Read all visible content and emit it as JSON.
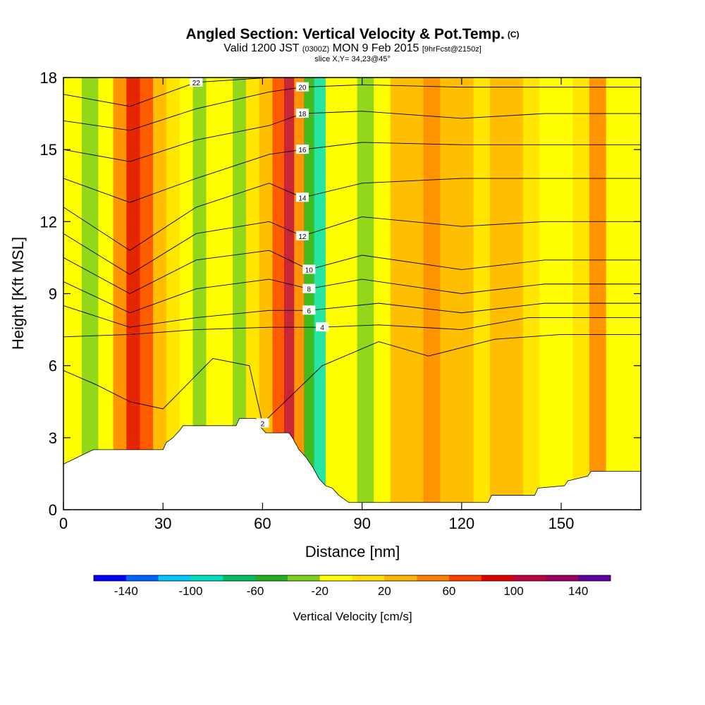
{
  "chart_data": {
    "type": "heatmap",
    "title": "Angled Section: Vertical Velocity & Pot.Temp.",
    "title_unit": "(C)",
    "subtitle_main": "Valid 1200 JST",
    "subtitle_utc": "(0300Z)",
    "subtitle_date": "MON 9 Feb 2015",
    "subtitle_fcst": "[9hrFcst@2150z]",
    "slice_label": "slice X,Y= 34,23@45°",
    "xlabel": "Distance [nm]",
    "ylabel": "Height [Kft MSL]",
    "xlim": [
      0,
      174
    ],
    "ylim": [
      0,
      18
    ],
    "x_ticks": [
      0,
      30,
      60,
      90,
      120,
      150
    ],
    "y_ticks": [
      0,
      3,
      6,
      9,
      12,
      15,
      18
    ],
    "grid": false,
    "colorbar": {
      "label": "Vertical Velocity [cm/s]",
      "tick_labels": [
        "-140",
        "-100",
        "-60",
        "-20",
        "20",
        "60",
        "100",
        "140"
      ],
      "tick_values": [
        -140,
        -100,
        -60,
        -20,
        20,
        60,
        100,
        140
      ],
      "bounds": [
        -160,
        160
      ],
      "step": 20,
      "colors": [
        "#0000ff",
        "#0064ff",
        "#00c8ff",
        "#00e0c0",
        "#00c060",
        "#20b020",
        "#80d020",
        "#ffff00",
        "#ffe000",
        "#ffb400",
        "#ff8000",
        "#ff4000",
        "#e00000",
        "#c00040",
        "#a00060",
        "#6000a0"
      ]
    },
    "velocity_columns": [
      {
        "x": 3,
        "value": -20
      },
      {
        "x": 8,
        "value": -40
      },
      {
        "x": 13,
        "value": -20
      },
      {
        "x": 17,
        "value": 40
      },
      {
        "x": 21,
        "value": 80
      },
      {
        "x": 25,
        "value": 60
      },
      {
        "x": 29,
        "value": 20
      },
      {
        "x": 33,
        "value": 0
      },
      {
        "x": 37,
        "value": -20
      },
      {
        "x": 41,
        "value": -40
      },
      {
        "x": 45,
        "value": -20
      },
      {
        "x": 49,
        "value": -20
      },
      {
        "x": 53,
        "value": -40
      },
      {
        "x": 57,
        "value": 0
      },
      {
        "x": 61,
        "value": 20
      },
      {
        "x": 65,
        "value": 60
      },
      {
        "x": 68,
        "value": 100
      },
      {
        "x": 71,
        "value": 40
      },
      {
        "x": 74,
        "value": -60
      },
      {
        "x": 77,
        "value": -100
      },
      {
        "x": 81,
        "value": -20
      },
      {
        "x": 86,
        "value": -20
      },
      {
        "x": 91,
        "value": -40
      },
      {
        "x": 96,
        "value": -20
      },
      {
        "x": 101,
        "value": 20
      },
      {
        "x": 106,
        "value": 20
      },
      {
        "x": 111,
        "value": 40
      },
      {
        "x": 116,
        "value": 20
      },
      {
        "x": 121,
        "value": 20
      },
      {
        "x": 126,
        "value": 0
      },
      {
        "x": 131,
        "value": 20
      },
      {
        "x": 136,
        "value": 20
      },
      {
        "x": 141,
        "value": 0
      },
      {
        "x": 146,
        "value": -20
      },
      {
        "x": 151,
        "value": -20
      },
      {
        "x": 156,
        "value": 0
      },
      {
        "x": 161,
        "value": 40
      },
      {
        "x": 166,
        "value": -20
      },
      {
        "x": 171,
        "value": -20
      }
    ],
    "terrain": [
      {
        "x": 0,
        "h": 1.9
      },
      {
        "x": 3,
        "h": 2.1
      },
      {
        "x": 6,
        "h": 2.3
      },
      {
        "x": 9,
        "h": 2.5
      },
      {
        "x": 12,
        "h": 2.5
      },
      {
        "x": 30,
        "h": 2.5
      },
      {
        "x": 31,
        "h": 2.8
      },
      {
        "x": 33,
        "h": 3.0
      },
      {
        "x": 35,
        "h": 3.3
      },
      {
        "x": 36,
        "h": 3.5
      },
      {
        "x": 52,
        "h": 3.5
      },
      {
        "x": 53,
        "h": 3.8
      },
      {
        "x": 58,
        "h": 3.8
      },
      {
        "x": 59,
        "h": 3.5
      },
      {
        "x": 61,
        "h": 3.2
      },
      {
        "x": 68,
        "h": 3.2
      },
      {
        "x": 69,
        "h": 3.0
      },
      {
        "x": 71,
        "h": 2.5
      },
      {
        "x": 73,
        "h": 2.2
      },
      {
        "x": 75,
        "h": 1.8
      },
      {
        "x": 77,
        "h": 1.3
      },
      {
        "x": 79,
        "h": 1.0
      },
      {
        "x": 81,
        "h": 0.9
      },
      {
        "x": 83,
        "h": 0.6
      },
      {
        "x": 86,
        "h": 0.3
      },
      {
        "x": 89,
        "h": 0.3
      },
      {
        "x": 128,
        "h": 0.3
      },
      {
        "x": 129,
        "h": 0.6
      },
      {
        "x": 142,
        "h": 0.6
      },
      {
        "x": 143,
        "h": 0.9
      },
      {
        "x": 151,
        "h": 1.0
      },
      {
        "x": 152,
        "h": 1.2
      },
      {
        "x": 158,
        "h": 1.4
      },
      {
        "x": 159,
        "h": 1.6
      },
      {
        "x": 174,
        "h": 1.6
      }
    ],
    "isotherms": [
      {
        "value": 2,
        "label": "2",
        "pts": [
          [
            0,
            5.8
          ],
          [
            10,
            5.2
          ],
          [
            20,
            4.5
          ],
          [
            30,
            4.2
          ],
          [
            45,
            6.3
          ],
          [
            56,
            6.0
          ],
          [
            60,
            3.6
          ],
          [
            78,
            6.0
          ],
          [
            95,
            7.0
          ],
          [
            110,
            6.4
          ],
          [
            130,
            7.1
          ],
          [
            150,
            7.3
          ],
          [
            174,
            7.3
          ]
        ]
      },
      {
        "value": 4,
        "label": "4",
        "pts": [
          [
            0,
            7.2
          ],
          [
            20,
            7.3
          ],
          [
            40,
            7.5
          ],
          [
            62,
            7.6
          ],
          [
            78,
            7.6
          ],
          [
            95,
            7.7
          ],
          [
            120,
            7.5
          ],
          [
            140,
            8.0
          ],
          [
            174,
            8.0
          ]
        ]
      },
      {
        "value": 6,
        "label": "6",
        "pts": [
          [
            0,
            8.5
          ],
          [
            20,
            7.6
          ],
          [
            40,
            8.0
          ],
          [
            62,
            8.3
          ],
          [
            74,
            8.3
          ],
          [
            95,
            8.6
          ],
          [
            120,
            8.2
          ],
          [
            145,
            8.6
          ],
          [
            174,
            8.6
          ]
        ]
      },
      {
        "value": 8,
        "label": "8",
        "pts": [
          [
            0,
            9.5
          ],
          [
            20,
            8.2
          ],
          [
            40,
            9.2
          ],
          [
            62,
            9.6
          ],
          [
            74,
            9.2
          ],
          [
            90,
            9.6
          ],
          [
            120,
            9.0
          ],
          [
            145,
            9.4
          ],
          [
            174,
            9.4
          ]
        ]
      },
      {
        "value": 10,
        "label": "10",
        "pts": [
          [
            0,
            10.5
          ],
          [
            20,
            9.0
          ],
          [
            40,
            10.4
          ],
          [
            62,
            10.8
          ],
          [
            74,
            10.0
          ],
          [
            90,
            10.6
          ],
          [
            120,
            10.0
          ],
          [
            145,
            10.4
          ],
          [
            174,
            10.4
          ]
        ]
      },
      {
        "value": 12,
        "label": "12",
        "pts": [
          [
            0,
            11.5
          ],
          [
            20,
            9.8
          ],
          [
            40,
            11.5
          ],
          [
            62,
            12.0
          ],
          [
            72,
            11.4
          ],
          [
            90,
            12.2
          ],
          [
            120,
            11.8
          ],
          [
            145,
            12.0
          ],
          [
            174,
            12.0
          ]
        ]
      },
      {
        "value": 14,
        "label": "14",
        "pts": [
          [
            0,
            12.6
          ],
          [
            20,
            10.8
          ],
          [
            40,
            12.6
          ],
          [
            62,
            13.6
          ],
          [
            72,
            13.0
          ],
          [
            90,
            13.6
          ],
          [
            120,
            13.8
          ],
          [
            145,
            13.8
          ],
          [
            174,
            13.8
          ]
        ]
      },
      {
        "value": 16,
        "label": "16",
        "pts": [
          [
            0,
            13.8
          ],
          [
            20,
            12.8
          ],
          [
            40,
            13.8
          ],
          [
            62,
            14.8
          ],
          [
            72,
            15.0
          ],
          [
            90,
            15.3
          ],
          [
            120,
            15.2
          ],
          [
            145,
            15.2
          ],
          [
            174,
            15.2
          ]
        ]
      },
      {
        "value": 18,
        "label": "18",
        "pts": [
          [
            0,
            15.0
          ],
          [
            20,
            14.5
          ],
          [
            40,
            15.4
          ],
          [
            62,
            16.0
          ],
          [
            72,
            16.5
          ],
          [
            90,
            16.6
          ],
          [
            120,
            16.3
          ],
          [
            145,
            16.5
          ],
          [
            174,
            16.5
          ]
        ]
      },
      {
        "value": 20,
        "label": "20",
        "pts": [
          [
            0,
            16.2
          ],
          [
            20,
            15.8
          ],
          [
            40,
            16.7
          ],
          [
            62,
            17.4
          ],
          [
            72,
            17.6
          ],
          [
            90,
            17.7
          ],
          [
            120,
            17.6
          ],
          [
            145,
            17.6
          ],
          [
            174,
            17.6
          ]
        ]
      },
      {
        "value": 22,
        "label": "22",
        "pts": [
          [
            0,
            17.3
          ],
          [
            20,
            16.8
          ],
          [
            40,
            17.8
          ],
          [
            62,
            18.0
          ]
        ]
      }
    ]
  }
}
